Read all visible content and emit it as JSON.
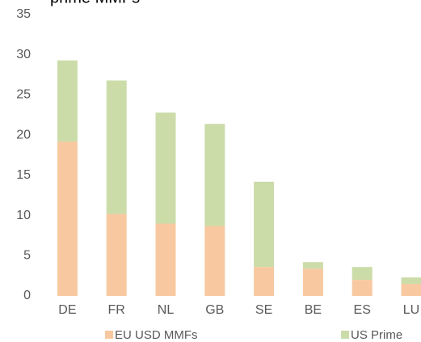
{
  "chart_data": {
    "type": "stacked_bar",
    "title": "prime MMFs",
    "categories": [
      "DE",
      "FR",
      "NL",
      "GB",
      "SE",
      "BE",
      "ES",
      "LU"
    ],
    "series": [
      {
        "name": "EU USD MMFs",
        "color": "#f8c9a0",
        "values": [
          19.2,
          10.2,
          9.0,
          8.7,
          3.6,
          3.4,
          2.0,
          1.5
        ]
      },
      {
        "name": "US Prime",
        "color": "#cbdca9",
        "values": [
          10.1,
          16.6,
          13.8,
          12.7,
          10.6,
          0.8,
          1.6,
          0.8
        ]
      }
    ],
    "ylim": [
      0,
      35
    ],
    "yticks": [
      0,
      5,
      10,
      15,
      20,
      25,
      30,
      35
    ],
    "grid": false
  }
}
